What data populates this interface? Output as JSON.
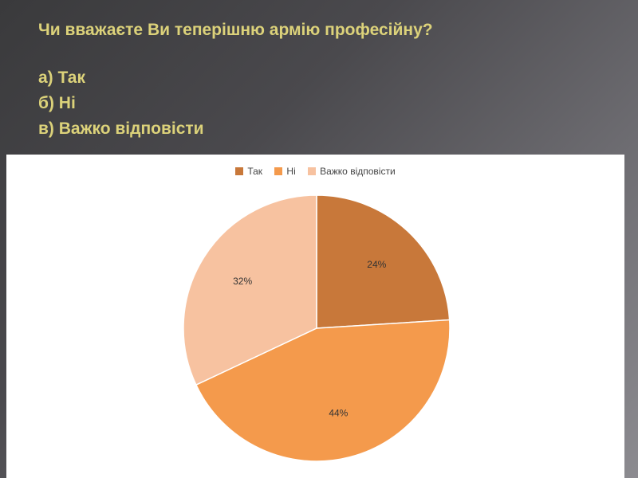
{
  "question": {
    "title": "Чи вважаєте Ви теперішню армію професійну?",
    "options": [
      "а) Так",
      "б) Ні",
      "в) Важко відповісти"
    ]
  },
  "chart_data": {
    "type": "pie",
    "title": "",
    "legend_position": "top",
    "categories": [
      "Так",
      "Ні",
      "Важко відповісти"
    ],
    "values": [
      24,
      44,
      32
    ],
    "labels": [
      "24%",
      "44%",
      "32%"
    ],
    "colors": [
      "#c8783a",
      "#f49a4c",
      "#f7c2a0"
    ]
  }
}
